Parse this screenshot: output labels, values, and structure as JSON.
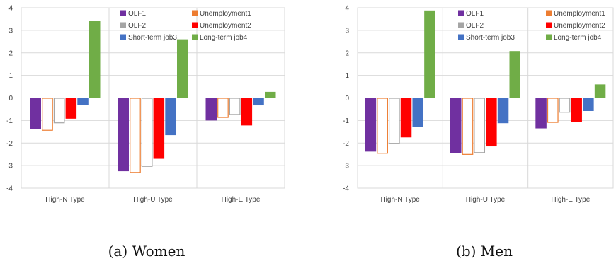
{
  "legend": [
    {
      "name": "OLF1",
      "color": "#7030a0",
      "hollow": false
    },
    {
      "name": "Unemployment1",
      "color": "#ed7d31",
      "hollow": true
    },
    {
      "name": "OLF2",
      "color": "#a5a5a5",
      "hollow": true
    },
    {
      "name": "Unemployment2",
      "color": "#ff0000",
      "hollow": false
    },
    {
      "name": "Short-term job3",
      "color": "#4472c4",
      "hollow": false
    },
    {
      "name": "Long-term job4",
      "color": "#70ad47",
      "hollow": false
    }
  ],
  "chart_data": [
    {
      "type": "bar",
      "caption": "(a) Women",
      "categories": [
        "High-N Type",
        "High-U Type",
        "High-E Type"
      ],
      "ylim": [
        -4,
        4
      ],
      "yticks": [
        "4",
        "3",
        "2",
        "1",
        "0",
        "-1",
        "-2",
        "-3",
        "-4"
      ],
      "grid": true,
      "legend_position": "top",
      "series": [
        {
          "name": "OLF1",
          "values": [
            -1.38,
            -3.25,
            -1.0
          ]
        },
        {
          "name": "Unemployment1",
          "values": [
            -1.45,
            -3.32,
            -0.88
          ]
        },
        {
          "name": "OLF2",
          "values": [
            -1.12,
            -3.05,
            -0.75
          ]
        },
        {
          "name": "Unemployment2",
          "values": [
            -0.92,
            -2.7,
            -1.22
          ]
        },
        {
          "name": "Short-term job3",
          "values": [
            -0.3,
            -1.65,
            -0.33
          ]
        },
        {
          "name": "Long-term job4",
          "values": [
            3.42,
            2.6,
            0.27
          ]
        }
      ]
    },
    {
      "type": "bar",
      "caption": "(b) Men",
      "categories": [
        "High-N Type",
        "High-U Type",
        "High-E Type"
      ],
      "ylim": [
        -4,
        4
      ],
      "yticks": [
        "4",
        "3",
        "2",
        "1",
        "0",
        "-1",
        "-2",
        "-3",
        "-4"
      ],
      "grid": true,
      "legend_position": "top",
      "series": [
        {
          "name": "OLF1",
          "values": [
            -2.38,
            -2.45,
            -1.35
          ]
        },
        {
          "name": "Unemployment1",
          "values": [
            -2.47,
            -2.52,
            -1.1
          ]
        },
        {
          "name": "OLF2",
          "values": [
            -2.03,
            -2.44,
            -0.65
          ]
        },
        {
          "name": "Unemployment2",
          "values": [
            -1.75,
            -2.15,
            -1.08
          ]
        },
        {
          "name": "Short-term job3",
          "values": [
            -1.3,
            -1.12,
            -0.58
          ]
        },
        {
          "name": "Long-term job4",
          "values": [
            3.88,
            2.08,
            0.6
          ]
        }
      ]
    }
  ]
}
